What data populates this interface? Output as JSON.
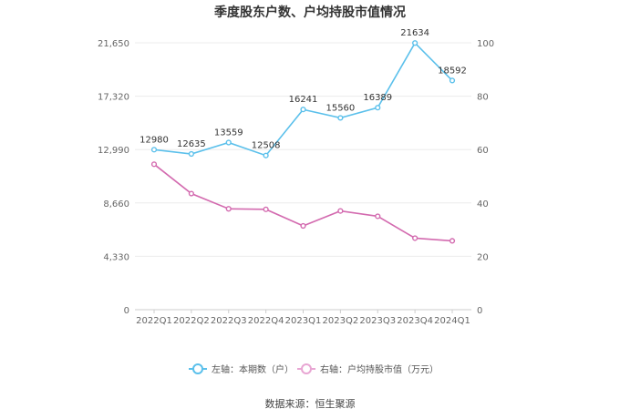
{
  "chart_data": {
    "type": "line",
    "title": "季度股东户数、户均持股市值情况",
    "categories": [
      "2022Q1",
      "2022Q2",
      "2022Q3",
      "2022Q4",
      "2023Q1",
      "2023Q2",
      "2023Q3",
      "2023Q4",
      "2024Q1"
    ],
    "series": [
      {
        "name": "左轴：本期数（户）",
        "axis": "left",
        "color": "#5bc0eb",
        "values": [
          12980,
          12635,
          13559,
          12508,
          16241,
          15560,
          16389,
          21634,
          18592
        ],
        "labels": [
          "12980",
          "12635",
          "13559",
          "12508",
          "16241",
          "15560",
          "16389",
          "21634",
          "18592"
        ]
      },
      {
        "name": "右轴：户均持股市值（万元）",
        "axis": "right",
        "color": "#d36aaf",
        "values": [
          54.5,
          43.5,
          37.8,
          37.6,
          31.4,
          37.0,
          35.0,
          26.8,
          25.8
        ]
      }
    ],
    "left_axis": {
      "min": 0,
      "max": 21650,
      "ticks": [
        0,
        4330,
        8660,
        12990,
        17320,
        21650
      ],
      "tick_labels": [
        "0",
        "4,330",
        "8,660",
        "12,990",
        "17,320",
        "21,650"
      ]
    },
    "right_axis": {
      "min": 0,
      "max": 100,
      "ticks": [
        0,
        20,
        40,
        60,
        80,
        100
      ],
      "tick_labels": [
        "0",
        "20",
        "40",
        "60",
        "80",
        "100"
      ]
    },
    "grid": true,
    "legend": "bottom"
  },
  "source": "数据来源：恒生聚源"
}
